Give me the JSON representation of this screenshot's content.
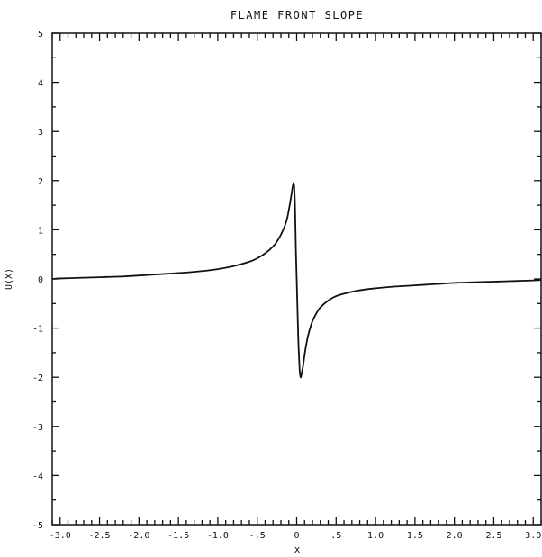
{
  "chart_data": {
    "type": "line",
    "title": "FLAME FRONT SLOPE",
    "xlabel": "x",
    "ylabel": "U(X)",
    "xlim": [
      -3.1,
      3.1
    ],
    "ylim": [
      -5,
      5
    ],
    "x_ticks": [
      -3.0,
      -2.5,
      -2.0,
      -1.5,
      -1.0,
      -0.5,
      0,
      0.5,
      1.0,
      1.5,
      2.0,
      2.5,
      3.0
    ],
    "x_tick_labels": [
      "-3.0",
      "-2.5",
      "-2.0",
      "-1.5",
      "-1.0",
      "-.5",
      "0",
      ".5",
      "1.0",
      "1.5",
      "2.0",
      "2.5",
      "3.0"
    ],
    "y_ticks": [
      -5,
      -4,
      -3,
      -2,
      -1,
      0,
      1,
      2,
      3,
      4,
      5
    ],
    "y_tick_labels": [
      "-5",
      "-4",
      "-3",
      "-2",
      "-1",
      "0",
      "1",
      "2",
      "3",
      "4",
      "5"
    ],
    "grid": false,
    "series": [
      {
        "color": "#111111",
        "x": [
          -3.1,
          -3.0,
          -2.8,
          -2.6,
          -2.4,
          -2.2,
          -2.0,
          -1.8,
          -1.6,
          -1.4,
          -1.2,
          -1.0,
          -0.8,
          -0.6,
          -0.5,
          -0.4,
          -0.3,
          -0.25,
          -0.2,
          -0.15,
          -0.12,
          -0.1,
          -0.08,
          -0.06,
          -0.05,
          -0.04,
          -0.03,
          -0.02,
          -0.01,
          0.0,
          0.01,
          0.02,
          0.03,
          0.04,
          0.05,
          0.06,
          0.08,
          0.1,
          0.12,
          0.15,
          0.2,
          0.25,
          0.3,
          0.4,
          0.5,
          0.6,
          0.8,
          1.0,
          1.2,
          1.4,
          1.6,
          1.8,
          2.0,
          2.2,
          2.4,
          2.6,
          2.8,
          3.0,
          3.1
        ],
        "y": [
          0.0,
          0.01,
          0.02,
          0.03,
          0.04,
          0.05,
          0.07,
          0.09,
          0.11,
          0.13,
          0.16,
          0.2,
          0.26,
          0.35,
          0.42,
          0.52,
          0.66,
          0.76,
          0.9,
          1.08,
          1.24,
          1.4,
          1.58,
          1.78,
          1.88,
          1.95,
          1.85,
          1.4,
          0.6,
          0.0,
          -0.6,
          -1.2,
          -1.6,
          -1.9,
          -2.0,
          -1.95,
          -1.78,
          -1.55,
          -1.35,
          -1.12,
          -0.86,
          -0.7,
          -0.58,
          -0.44,
          -0.35,
          -0.3,
          -0.23,
          -0.19,
          -0.16,
          -0.14,
          -0.12,
          -0.1,
          -0.08,
          -0.07,
          -0.06,
          -0.05,
          -0.04,
          -0.03,
          -0.02
        ]
      }
    ]
  }
}
